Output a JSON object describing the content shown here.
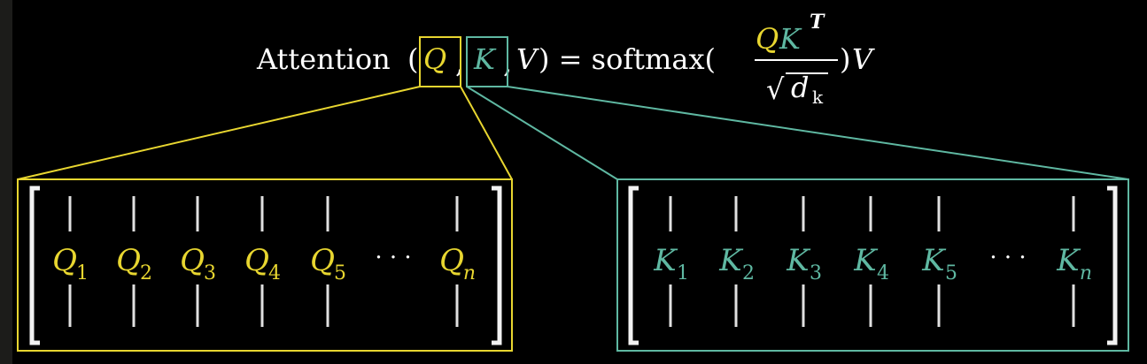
{
  "formula": {
    "func": "Attention",
    "open_paren": "(",
    "q": "Q",
    "comma1": ",",
    "k": "K",
    "comma2": ",",
    "v": "V",
    "close_eq": ") = softmax(",
    "num_q": "Q",
    "num_k": "K",
    "num_sup": "T",
    "den_sqrt": "√",
    "den_d": "d",
    "den_sub": "k",
    "tail_paren": ")",
    "tail_v": "V"
  },
  "query_matrix": {
    "symbol": "Q",
    "subscripts": [
      "1",
      "2",
      "3",
      "4",
      "5",
      "n"
    ],
    "ellipsis": "· · ·"
  },
  "key_matrix": {
    "symbol": "K",
    "subscripts": [
      "1",
      "2",
      "3",
      "4",
      "5",
      "n"
    ],
    "ellipsis": "· · ·"
  },
  "colors": {
    "background": "#000000",
    "text": "#ffffff",
    "query": "#e8d630",
    "key": "#5fb8a2",
    "stroke": "#e0e0e0"
  }
}
